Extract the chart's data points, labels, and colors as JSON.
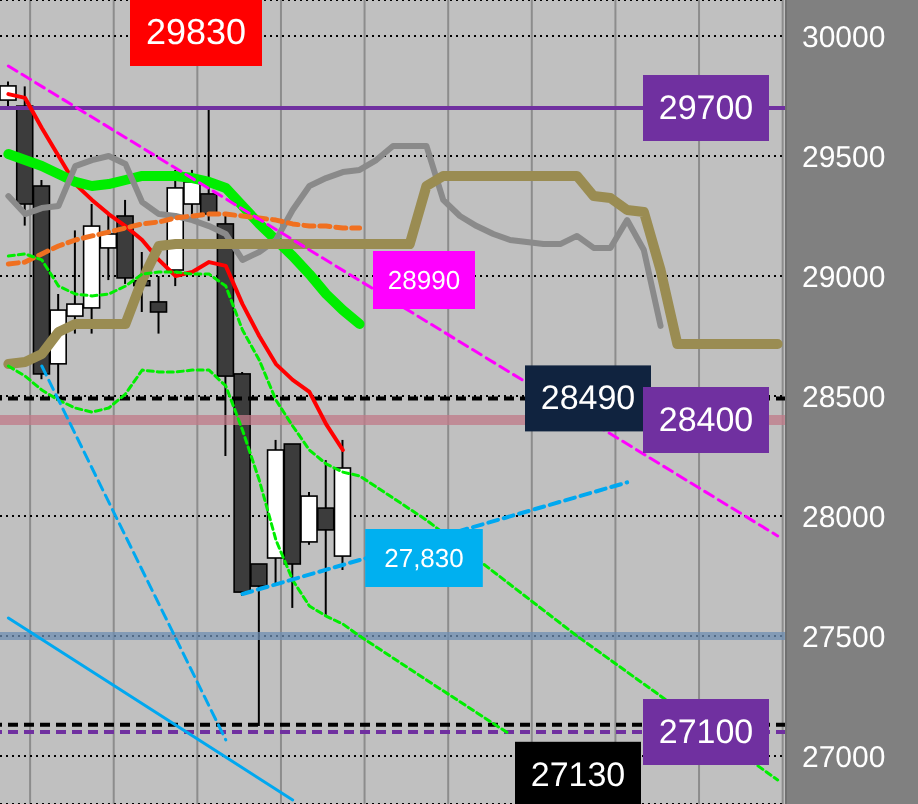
{
  "chart_data": {
    "type": "candlestick",
    "categories": [
      null,
      null,
      null,
      null,
      null,
      null,
      null,
      null,
      null,
      null,
      null,
      null,
      null,
      null,
      null,
      null,
      null,
      null,
      null,
      null,
      null,
      null,
      null,
      null,
      null,
      null,
      null,
      null,
      null,
      null,
      null,
      null,
      null,
      null,
      null,
      null,
      null,
      null,
      null,
      null,
      null,
      null,
      null,
      null,
      null,
      null,
      null
    ],
    "ohlc": [
      [
        29733,
        29810,
        29700,
        29792
      ],
      [
        29708,
        29790,
        29210,
        29300
      ],
      [
        29375,
        29400,
        28570,
        28592
      ],
      [
        28634,
        28925,
        28510,
        28858
      ],
      [
        28833,
        29190,
        28760,
        28883
      ],
      [
        28867,
        29300,
        28760,
        29208
      ],
      [
        29117,
        29258,
        28983,
        29175
      ],
      [
        29250,
        29317,
        28967,
        28992
      ],
      [
        28980,
        29100,
        28850,
        28960
      ],
      [
        28892,
        29000,
        28760,
        28850
      ],
      [
        29025,
        29442,
        28958,
        29367
      ],
      [
        29300,
        29442,
        29250,
        29392
      ],
      [
        29342,
        29700,
        29230,
        29258
      ],
      [
        29217,
        29250,
        28250,
        28583
      ],
      [
        28592,
        28600,
        27667,
        27683
      ],
      [
        27800,
        27800,
        27125,
        27708
      ],
      [
        27825,
        28317,
        27717,
        28275
      ],
      [
        28300,
        28300,
        27617,
        27800
      ],
      [
        27892,
        28100,
        27880,
        28083
      ],
      [
        28033,
        28233,
        27583,
        27942
      ],
      [
        27833,
        28317,
        27775,
        28200
      ],
      null,
      null,
      null,
      null,
      null,
      null,
      null,
      null,
      null,
      null,
      null,
      null,
      null,
      null,
      null,
      null,
      null,
      null,
      null,
      null,
      null,
      null,
      null,
      null,
      null,
      null
    ],
    "series": [
      {
        "type": "line",
        "color": "#ff0000",
        "line_style": "solid",
        "values": [
          29758,
          29742,
          29617,
          29500,
          29383,
          29317,
          29258,
          29208,
          29150,
          29067,
          29000,
          29017,
          29058,
          29042,
          28883,
          28750,
          28633,
          28567,
          28517,
          28383,
          28275,
          null,
          null,
          null,
          null,
          null,
          null,
          null,
          null,
          null,
          null,
          null,
          null,
          null,
          null,
          null,
          null,
          null,
          null,
          null,
          null,
          null,
          null,
          null,
          null,
          null,
          null
        ]
      },
      {
        "type": "line",
        "color": "#00ee00",
        "line_style": "solid",
        "values": [
          29508,
          29483,
          29458,
          29425,
          29392,
          29375,
          29383,
          29400,
          29417,
          29417,
          29417,
          29408,
          29392,
          29367,
          29292,
          29217,
          29150,
          29083,
          29008,
          28925,
          28858,
          28800,
          null,
          null,
          null,
          null,
          null,
          null,
          null,
          null,
          null,
          null,
          null,
          null,
          null,
          null,
          null,
          null,
          null,
          null,
          null,
          null,
          null,
          null,
          null,
          null,
          null
        ]
      },
      {
        "type": "line",
        "color": "#8a8a8a",
        "line_style": "solid",
        "values": [
          29333,
          29258,
          29283,
          29292,
          29458,
          29483,
          29500,
          29467,
          29308,
          29258,
          29250,
          29233,
          29208,
          29175,
          29067,
          29100,
          29150,
          29275,
          29375,
          29408,
          29433,
          29442,
          29483,
          29542,
          29542,
          29542,
          29317,
          29250,
          29208,
          29175,
          29150,
          29142,
          29133,
          29133,
          29167,
          29117,
          29117,
          29233,
          29108,
          28792,
          null,
          null,
          null,
          null,
          null,
          null,
          null
        ]
      },
      {
        "type": "line",
        "color": "#9a8c52",
        "line_style": "solid",
        "values": [
          28633,
          28642,
          28675,
          28767,
          28800,
          28800,
          28800,
          28800,
          28983,
          29125,
          29133,
          29133,
          29133,
          29133,
          29133,
          29133,
          29133,
          29133,
          29133,
          29133,
          29133,
          29133,
          29133,
          29133,
          29133,
          29375,
          29417,
          29417,
          29417,
          29417,
          29417,
          29417,
          29417,
          29417,
          29417,
          29333,
          29325,
          29275,
          29267,
          29025,
          28717,
          28717,
          28717,
          28717,
          28717,
          28717,
          28717
        ]
      },
      {
        "type": "line",
        "color": "#f07020",
        "line_style": "dashed",
        "values": [
          29050,
          29058,
          29092,
          29125,
          29150,
          29167,
          29183,
          29200,
          29217,
          29225,
          29242,
          29250,
          29258,
          29258,
          29250,
          29242,
          29233,
          29217,
          29208,
          29208,
          29200,
          29200,
          null,
          null,
          null,
          null,
          null,
          null,
          null,
          null,
          null,
          null,
          null,
          null,
          null,
          null,
          null,
          null,
          null,
          null,
          null,
          null,
          null,
          null,
          null,
          null,
          null
        ]
      },
      {
        "type": "line",
        "color": "#00ee00",
        "line_style": "dotted",
        "values": [
          29083,
          29092,
          29067,
          28958,
          28925,
          28917,
          28925,
          28958,
          29008,
          29017,
          29017,
          29008,
          29008,
          28958,
          28775,
          28650,
          28483,
          28375,
          28275,
          28217,
          28183,
          28167,
          null,
          null,
          null,
          27983,
          null,
          null,
          null,
          null,
          null,
          null,
          null,
          null,
          27500,
          null,
          null,
          null,
          null,
          null,
          null,
          null,
          null,
          null,
          null,
          null,
          26900
        ]
      },
      {
        "type": "line",
        "color": "#00ee00",
        "line_style": "dotted",
        "values": [
          28625,
          28583,
          28525,
          28483,
          28450,
          28433,
          28450,
          28508,
          28608,
          28600,
          28600,
          28608,
          28608,
          28542,
          28358,
          28150,
          27900,
          27733,
          27625,
          27583,
          27550,
          27500,
          null,
          null,
          null,
          27317,
          null,
          null,
          null,
          null,
          27090,
          null,
          null,
          null,
          null,
          null,
          null,
          null,
          null,
          null,
          null,
          null,
          null,
          null,
          null,
          null,
          null
        ]
      },
      {
        "type": "line",
        "color": "#ff00ff",
        "line_style": "dashed",
        "values": [
          29875,
          null,
          null,
          null,
          null,
          null,
          null,
          null,
          null,
          null,
          null,
          null,
          null,
          null,
          null,
          null,
          null,
          null,
          null,
          null,
          null,
          null,
          null,
          null,
          null,
          null,
          null,
          null,
          null,
          null,
          null,
          null,
          null,
          null,
          null,
          null,
          null,
          null,
          null,
          null,
          null,
          null,
          null,
          null,
          null,
          null,
          27917
        ]
      },
      {
        "type": "line",
        "color": "#00a8f0",
        "line_style": "dashed",
        "values": [
          null,
          null,
          null,
          null,
          null,
          null,
          null,
          null,
          null,
          null,
          null,
          null,
          null,
          null,
          27675,
          null,
          null,
          null,
          null,
          null,
          null,
          null,
          null,
          null,
          null,
          null,
          null,
          null,
          null,
          null,
          null,
          null,
          null,
          null,
          null,
          null,
          null,
          28140,
          null,
          null,
          null,
          null,
          null,
          null,
          null,
          null,
          null
        ]
      },
      {
        "type": "line",
        "color": "#00a8f0",
        "line_style": "dashed",
        "values": [
          null,
          null,
          28625,
          null,
          null,
          null,
          null,
          null,
          null,
          null,
          null,
          null,
          null,
          27067,
          null,
          null,
          null,
          null,
          null,
          null,
          null,
          null,
          null,
          null,
          null,
          null,
          null,
          null,
          null,
          null,
          null,
          null,
          null,
          null,
          null,
          null,
          null,
          null,
          null,
          null,
          null,
          null,
          null,
          null,
          null,
          null,
          null
        ]
      },
      {
        "type": "line",
        "color": "#00a8f0",
        "line_style": "solid",
        "values": [
          27575,
          null,
          null,
          null,
          null,
          null,
          null,
          null,
          null,
          null,
          null,
          null,
          null,
          null,
          null,
          null,
          null,
          26817,
          null,
          null,
          null,
          null,
          null,
          null,
          null,
          null,
          null,
          null,
          null,
          null,
          null,
          null,
          null,
          null,
          null,
          null,
          null,
          null,
          null,
          null,
          null,
          null,
          null,
          null,
          null,
          null,
          null
        ]
      }
    ],
    "ylim": [
      26800,
      30150
    ],
    "yticks": [
      27000,
      27500,
      28000,
      28500,
      29000,
      29500,
      30000
    ],
    "ref_lines": [
      {
        "axis": "y",
        "value": 29700,
        "label": "29700",
        "color": "#7030a0",
        "line_style": "solid"
      },
      {
        "axis": "y",
        "value": 28490,
        "label": "28490",
        "color": "#000000",
        "line_style": "dashed"
      },
      {
        "axis": "y",
        "value": 28400,
        "label": "28400",
        "color": "#c07a88",
        "line_style": "solid"
      },
      {
        "axis": "y",
        "value": 27500,
        "color": "#6f8fb3",
        "line_style": "solid"
      },
      {
        "axis": "y",
        "value": 27100,
        "label": "27100",
        "color": "#7030a0",
        "line_style": "dashed"
      },
      {
        "axis": "y",
        "value": 27130,
        "label": "27130",
        "color": "#000000",
        "line_style": "dashed"
      }
    ],
    "annotations": [
      "29830",
      "28990",
      "27,830"
    ],
    "grid": true,
    "legend": false,
    "marker": "none",
    "tick_labels": "y"
  }
}
